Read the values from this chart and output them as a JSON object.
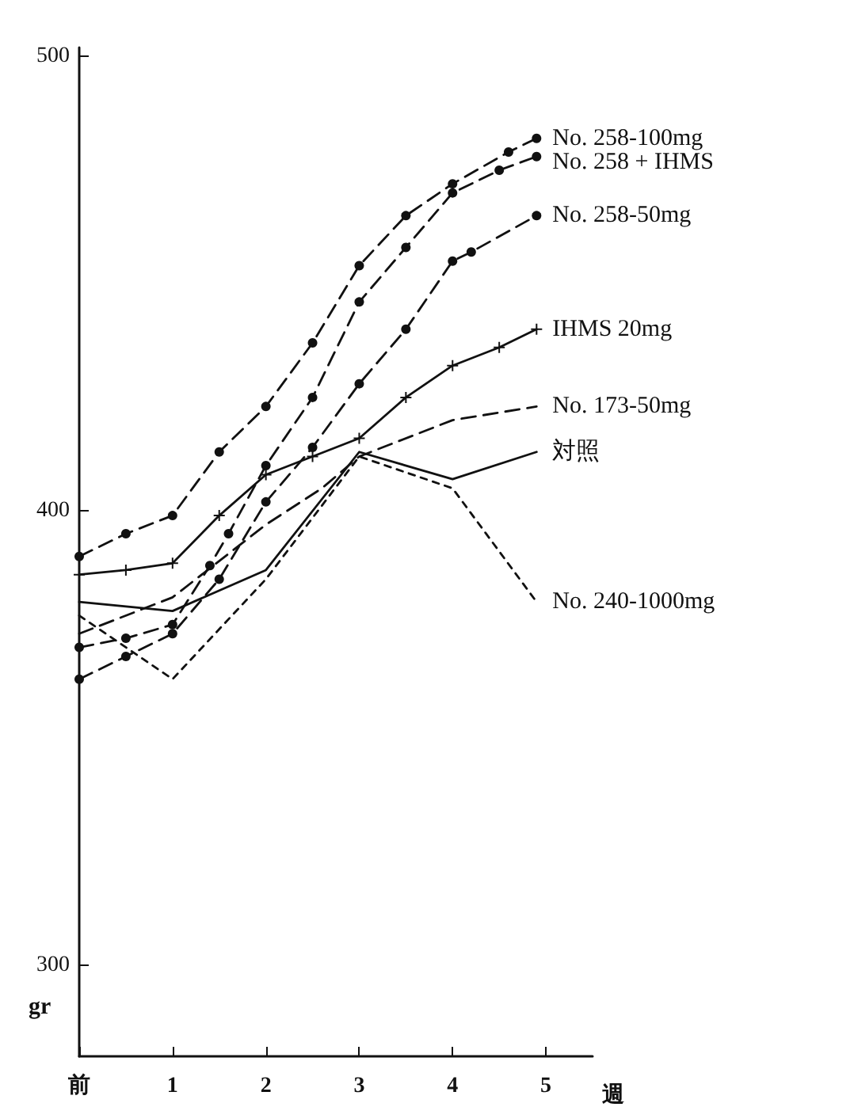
{
  "chart_data": {
    "type": "line",
    "xlabel": "週",
    "ylabel": "gr",
    "xlim": [
      0,
      5.5
    ],
    "xticks": [
      {
        "value": 0,
        "label": "前"
      },
      1,
      2,
      3,
      4,
      5
    ],
    "ylim": [
      280,
      502
    ],
    "yticks": [
      300,
      400,
      500
    ],
    "grid": false,
    "legend": false,
    "series": [
      {
        "name": "No. 258-100mg",
        "color": "#111111",
        "line_style": "dashed",
        "marker": "circle",
        "x": [
          0,
          0.5,
          1,
          1.5,
          2,
          2.5,
          3,
          3.5,
          4,
          4.6,
          4.9
        ],
        "values": [
          390,
          395,
          399,
          413,
          423,
          437,
          454,
          465,
          472,
          479,
          482
        ]
      },
      {
        "name": "No. 258 + IHMS",
        "color": "#111111",
        "line_style": "dashed",
        "marker": "circle",
        "x": [
          0,
          0.5,
          1,
          1.4,
          1.6,
          2,
          2.5,
          3,
          3.5,
          4,
          4.5,
          4.9
        ],
        "values": [
          370,
          372,
          375,
          388,
          395,
          410,
          425,
          446,
          458,
          470,
          475,
          478
        ]
      },
      {
        "name": "No. 258-50mg",
        "color": "#111111",
        "line_style": "dashed",
        "marker": "circle",
        "x": [
          0,
          0.5,
          1,
          1.5,
          2,
          2.5,
          3,
          3.5,
          4,
          4.2,
          4.9
        ],
        "values": [
          363,
          368,
          373,
          385,
          402,
          414,
          428,
          440,
          455,
          457,
          465
        ]
      },
      {
        "name": "IHMS 20mg",
        "color": "#111111",
        "line_style": "solid",
        "marker": "cross",
        "x": [
          0,
          0.5,
          1,
          1.5,
          2,
          2.5,
          3,
          3.5,
          4,
          4.5,
          4.9
        ],
        "values": [
          386,
          387,
          388.5,
          399,
          408,
          412,
          416,
          425,
          432,
          436,
          440
        ]
      },
      {
        "name": "No. 173-50mg",
        "color": "#111111",
        "line_style": "dashed",
        "marker": "none",
        "x": [
          0,
          1,
          2,
          2.6,
          3,
          4,
          4.9
        ],
        "values": [
          373,
          381,
          397,
          405,
          412,
          420,
          423
        ]
      },
      {
        "name": "対照",
        "color": "#111111",
        "line_style": "solid",
        "marker": "none",
        "x": [
          0,
          1,
          2,
          3,
          4,
          4.9
        ],
        "values": [
          380,
          378,
          387,
          413,
          407,
          413
        ]
      },
      {
        "name": "No. 240-1000mg",
        "color": "#111111",
        "line_style": "dotted",
        "marker": "none",
        "x": [
          0,
          1,
          2,
          3,
          4,
          4.9
        ],
        "values": [
          377,
          363,
          385,
          412,
          405,
          380
        ]
      }
    ]
  }
}
